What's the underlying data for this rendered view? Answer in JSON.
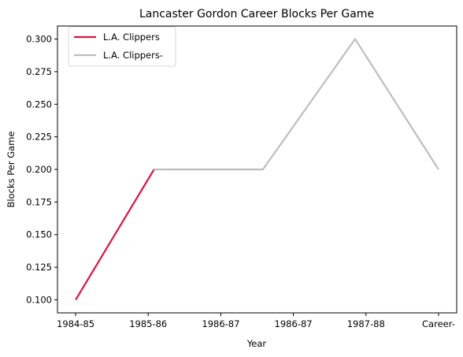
{
  "chart_data": {
    "type": "line",
    "title": "Lancaster Gordon Career Blocks Per Game",
    "xlabel": "Year",
    "ylabel": "Blocks Per Game",
    "categories": [
      "1984-85",
      "1985-86",
      "1986-87",
      "1986-87",
      "1987-88",
      "Career-"
    ],
    "ylim": [
      0.09,
      0.31
    ],
    "yticks": [
      "0.100",
      "0.125",
      "0.150",
      "0.175",
      "0.200",
      "0.225",
      "0.250",
      "0.275",
      "0.300"
    ],
    "grid": false,
    "legend_position": "top-left",
    "series": [
      {
        "name": "L.A. Clippers",
        "color": "#dc143c",
        "points": [
          {
            "x": 0,
            "y": 0.1
          },
          {
            "x": 1.08,
            "y": 0.2
          }
        ]
      },
      {
        "name": "L.A. Clippers-",
        "color": "#bebebe",
        "points": [
          {
            "x": 1.08,
            "y": 0.2
          },
          {
            "x": 2.58,
            "y": 0.2
          },
          {
            "x": 3.85,
            "y": 0.3
          },
          {
            "x": 5,
            "y": 0.2
          }
        ]
      }
    ]
  }
}
